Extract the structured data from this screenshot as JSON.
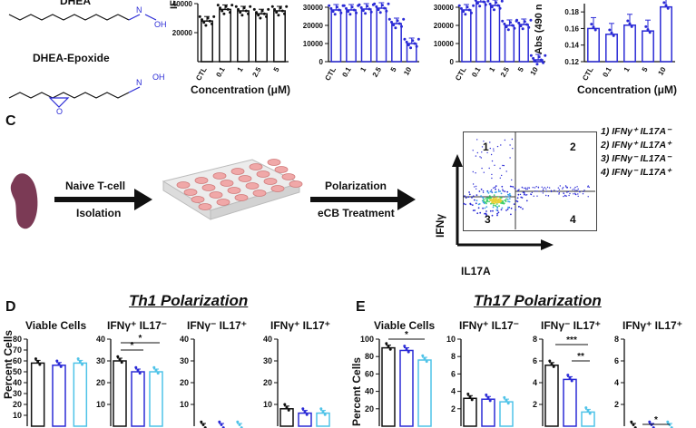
{
  "panel_letters": {
    "c": "C",
    "d": "D",
    "e": "E"
  },
  "molecules": {
    "dhea": "DHEA",
    "dhea_epoxide": "DHEA-Epoxide",
    "oh": "OH",
    "h": "H",
    "n": "N",
    "o": "O"
  },
  "top_axes": {
    "ifng_label": "IFNγ (pg/r",
    "abs_label": "Abs (490 n",
    "xlabel": "Concentration (μM)",
    "colors": {
      "black": "#111111",
      "blue": "#2b2bd6",
      "cyan": "#4fc3e8",
      "cell": "#f0a8a8",
      "plate": "#e9e9e9"
    }
  },
  "workflow": {
    "naive": "Naive T-cell",
    "isolation": "Isolation",
    "polarization": "Polarization",
    "treatment": "eCB Treatment"
  },
  "flow": {
    "y_label": "IFNγ",
    "x_label": "IL17A",
    "quadrants": [
      "1",
      "2",
      "3",
      "4"
    ]
  },
  "legend": [
    "1) IFNγ⁺ IL17A⁻",
    "2) IFNγ⁺ IL17A⁺",
    "3) IFNγ⁻ IL17A⁻",
    "4) IFNγ⁻ IL17A⁺"
  ],
  "th1": {
    "title": "Th1 Polarization",
    "headers": [
      "Viable Cells",
      "IFNγ⁺ IL17⁻",
      "IFNγ⁻ IL17⁺",
      "IFNγ⁺ IL17⁺"
    ],
    "ylabel": "Percent Cells"
  },
  "th17": {
    "title": "Th17 Polarization",
    "headers": [
      "Viable Cells",
      "IFNγ⁺ IL17⁻",
      "IFNγ⁻ IL17⁺",
      "IFNγ⁺ IL17⁺"
    ],
    "ylabel": "Percent Cells"
  },
  "chart_data": [
    {
      "type": "bar",
      "categories": [
        "CTL",
        "0.1",
        "1",
        "2.5",
        "5"
      ],
      "values": [
        28000,
        36000,
        35000,
        33000,
        35000
      ],
      "ylim": [
        0,
        40000
      ],
      "ylabel": "IFNγ (pg/r",
      "xlabel": "Concentration (μM)",
      "yticks": [
        20000,
        40000
      ]
    },
    {
      "type": "bar",
      "categories": [
        "CTL",
        "0.1",
        "1",
        "2.5",
        "5",
        "10"
      ],
      "values": [
        28500,
        28500,
        29000,
        29500,
        21000,
        10000
      ],
      "ylim": [
        0,
        30000
      ],
      "xlabel": "",
      "yticks": [
        0,
        10000,
        20000,
        30000
      ]
    },
    {
      "type": "bar",
      "categories": [
        "CTL",
        "0.1",
        "1",
        "2.5",
        "5",
        "10"
      ],
      "values": [
        28500,
        33000,
        31000,
        20000,
        20500,
        1000
      ],
      "ylim": [
        0,
        30000
      ],
      "xlabel": "",
      "yticks": [
        0,
        10000,
        20000,
        30000
      ]
    },
    {
      "type": "bar",
      "categories": [
        "CTL",
        "0.1",
        "1",
        "5",
        "10"
      ],
      "values": [
        0.16,
        0.153,
        0.164,
        0.157,
        0.186
      ],
      "ylim": [
        0.12,
        0.19
      ],
      "ylabel": "Abs (490 n",
      "xlabel": "Concentration (μM)",
      "yticks": [
        0.12,
        0.14,
        0.16,
        0.18
      ]
    },
    {
      "type": "bar",
      "title": "Viable Cells",
      "values": [
        58,
        56,
        58
      ],
      "ylim": [
        0,
        80
      ],
      "yticks": [
        10,
        20,
        30,
        40,
        50,
        60,
        70,
        80
      ]
    },
    {
      "type": "bar",
      "title": "IFNγ⁺ IL17⁻",
      "values": [
        30,
        25,
        25
      ],
      "ylim": [
        0,
        40
      ],
      "yticks": [
        10,
        20,
        30,
        40
      ]
    },
    {
      "type": "bar",
      "title": "IFNγ⁻ IL17⁺",
      "values": [
        0,
        0,
        0
      ],
      "ylim": [
        0,
        40
      ],
      "yticks": [
        10,
        20,
        30,
        40
      ]
    },
    {
      "type": "bar",
      "title": "IFNγ⁺ IL17⁺",
      "values": [
        8,
        6,
        6
      ],
      "ylim": [
        0,
        40
      ],
      "yticks": [
        10,
        20,
        30,
        40
      ]
    },
    {
      "type": "bar",
      "title": "Viable Cells",
      "values": [
        90,
        87,
        76
      ],
      "ylim": [
        0,
        100
      ],
      "yticks": [
        20,
        40,
        60,
        80,
        100
      ]
    },
    {
      "type": "bar",
      "title": "IFNγ⁺ IL17⁻",
      "values": [
        3.2,
        3.1,
        2.8
      ],
      "ylim": [
        0,
        10
      ],
      "yticks": [
        2,
        4,
        6,
        8,
        10
      ]
    },
    {
      "type": "bar",
      "title": "IFNγ⁻ IL17⁺",
      "values": [
        5.6,
        4.3,
        1.3
      ],
      "ylim": [
        0,
        8
      ],
      "yticks": [
        2,
        4,
        6,
        8
      ]
    },
    {
      "type": "bar",
      "title": "IFNγ⁺ IL17⁺",
      "values": [
        0.0,
        0.0,
        0.0
      ],
      "ylim": [
        0,
        8
      ],
      "yticks": [
        2,
        4,
        6,
        8
      ]
    }
  ],
  "significance": [
    "*",
    "*",
    "*",
    "***",
    "**",
    "*"
  ]
}
